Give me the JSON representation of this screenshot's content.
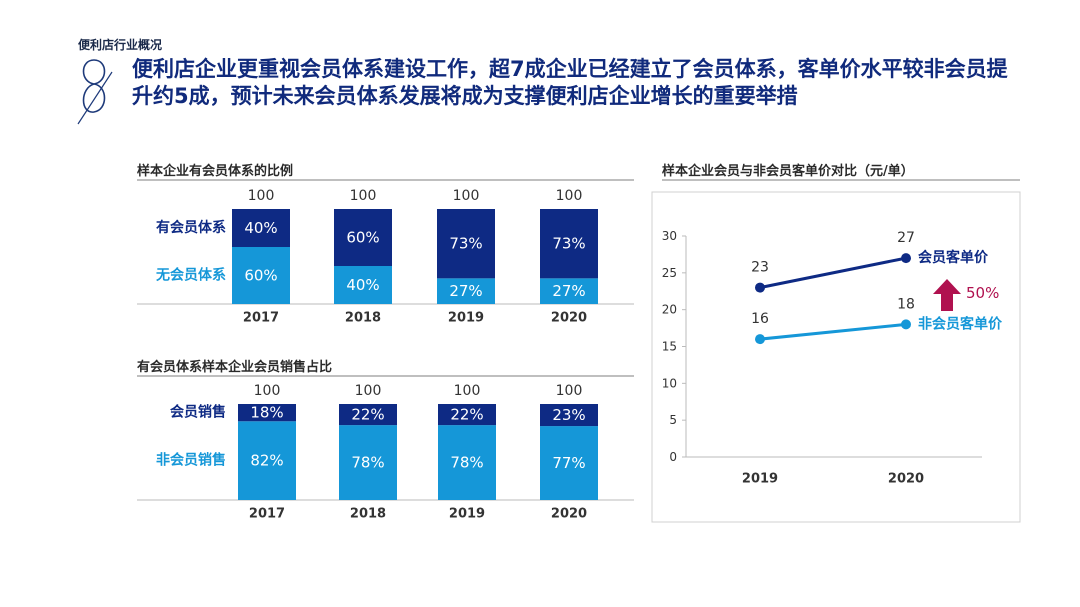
{
  "page": {
    "section_label": "便利店行业概况",
    "headline": "便利店企业更重视会员体系建设工作，超7成企业已经建立了会员体系，客单价水平较非会员提升约5成，预计未来会员体系发展将成为支撑便利店企业增长的重要举措"
  },
  "colors": {
    "dark_blue": "#0e2a84",
    "light_blue": "#1597d8",
    "headline": "#102a7c",
    "arrow": "#b0114f"
  },
  "chart_data": [
    {
      "type": "bar",
      "stacked": true,
      "title": "样本企业有会员体系的比例",
      "categories": [
        "2017",
        "2018",
        "2019",
        "2020"
      ],
      "totals": [
        100,
        100,
        100,
        100
      ],
      "series": [
        {
          "name": "有会员体系",
          "values": [
            40,
            60,
            73,
            73
          ],
          "labels": [
            "40%",
            "60%",
            "73%",
            "73%"
          ],
          "color": "#0e2a84"
        },
        {
          "name": "无会员体系",
          "values": [
            60,
            40,
            27,
            27
          ],
          "labels": [
            "60%",
            "40%",
            "27%",
            "27%"
          ],
          "color": "#1597d8"
        }
      ],
      "ylim": [
        0,
        100
      ]
    },
    {
      "type": "bar",
      "stacked": true,
      "title": "有会员体系样本企业会员销售占比",
      "categories": [
        "2017",
        "2018",
        "2019",
        "2020"
      ],
      "totals": [
        100,
        100,
        100,
        100
      ],
      "series": [
        {
          "name": "会员销售",
          "values": [
            18,
            22,
            22,
            23
          ],
          "labels": [
            "18%",
            "22%",
            "22%",
            "23%"
          ],
          "color": "#0e2a84"
        },
        {
          "name": "非会员销售",
          "values": [
            82,
            78,
            78,
            77
          ],
          "labels": [
            "82%",
            "78%",
            "78%",
            "77%"
          ],
          "color": "#1597d8"
        }
      ],
      "ylim": [
        0,
        100
      ]
    },
    {
      "type": "line",
      "title": "样本企业会员与非会员客单价对比（元/单）",
      "x": [
        "2019",
        "2020"
      ],
      "yticks": [
        0,
        5,
        10,
        15,
        20,
        25,
        30
      ],
      "ylim": [
        0,
        30
      ],
      "series": [
        {
          "name": "会员客单价",
          "values": [
            23,
            27
          ],
          "color": "#0e2a84"
        },
        {
          "name": "非会员客单价",
          "values": [
            16,
            18
          ],
          "color": "#1597d8"
        }
      ],
      "annotation": "50%"
    }
  ]
}
